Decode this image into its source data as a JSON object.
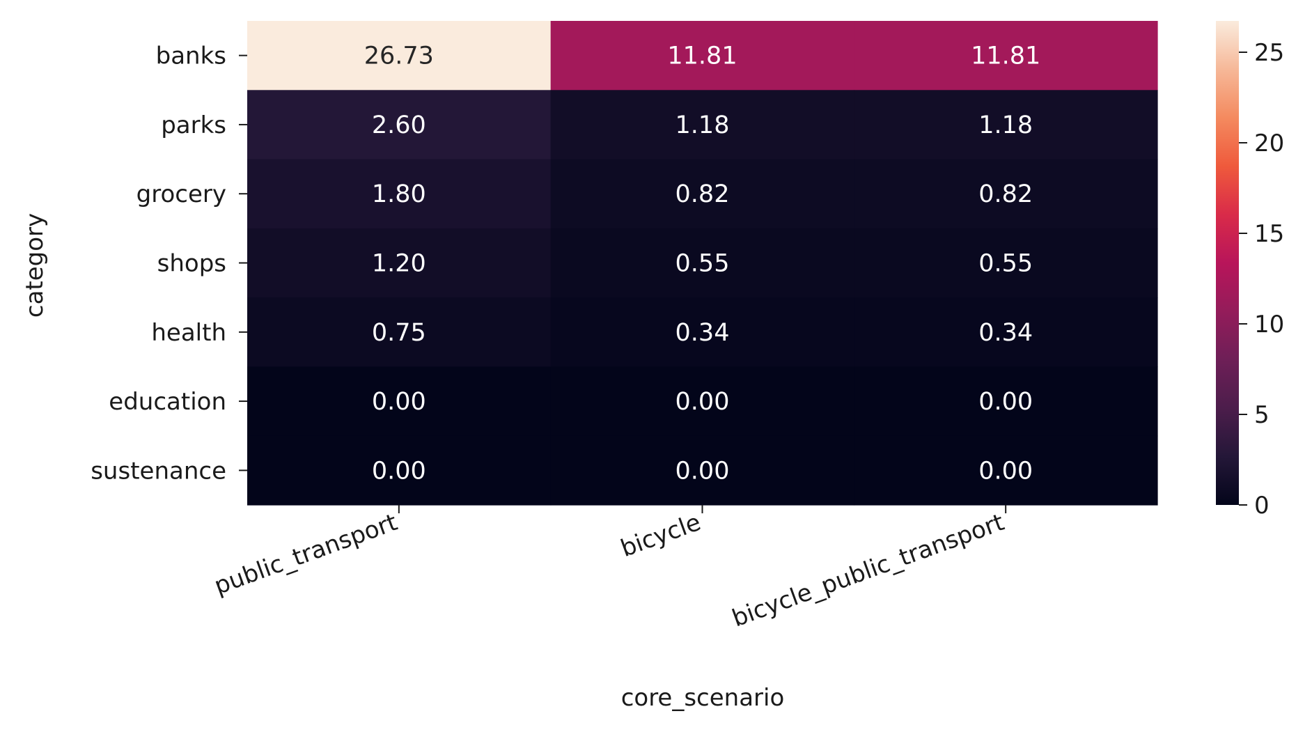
{
  "chart_data": {
    "type": "heatmap",
    "xlabel": "core_scenario",
    "ylabel": "category",
    "columns": [
      "public_transport",
      "bicycle",
      "bicycle_public_transport"
    ],
    "rows": [
      "banks",
      "parks",
      "grocery",
      "shops",
      "health",
      "education",
      "sustenance"
    ],
    "values": [
      [
        26.73,
        11.81,
        11.81
      ],
      [
        2.6,
        1.18,
        1.18
      ],
      [
        1.8,
        0.82,
        0.82
      ],
      [
        1.2,
        0.55,
        0.55
      ],
      [
        0.75,
        0.34,
        0.34
      ],
      [
        0.0,
        0.0,
        0.0
      ],
      [
        0.0,
        0.0,
        0.0
      ]
    ],
    "cell_labels": [
      [
        "26.73",
        "11.81",
        "11.81"
      ],
      [
        "2.60",
        "1.18",
        "1.18"
      ],
      [
        "1.80",
        "0.82",
        "0.82"
      ],
      [
        "1.20",
        "0.55",
        "0.55"
      ],
      [
        "0.75",
        "0.34",
        "0.34"
      ],
      [
        "0.00",
        "0.00",
        "0.00"
      ],
      [
        "0.00",
        "0.00",
        "0.00"
      ]
    ],
    "colorbar": {
      "vmin": 0,
      "vmax": 26.73,
      "ticks": [
        0,
        5,
        10,
        15,
        20,
        25
      ],
      "tick_labels": [
        "0",
        "5",
        "10",
        "15",
        "20",
        "25"
      ],
      "colormap": "rocket"
    }
  }
}
